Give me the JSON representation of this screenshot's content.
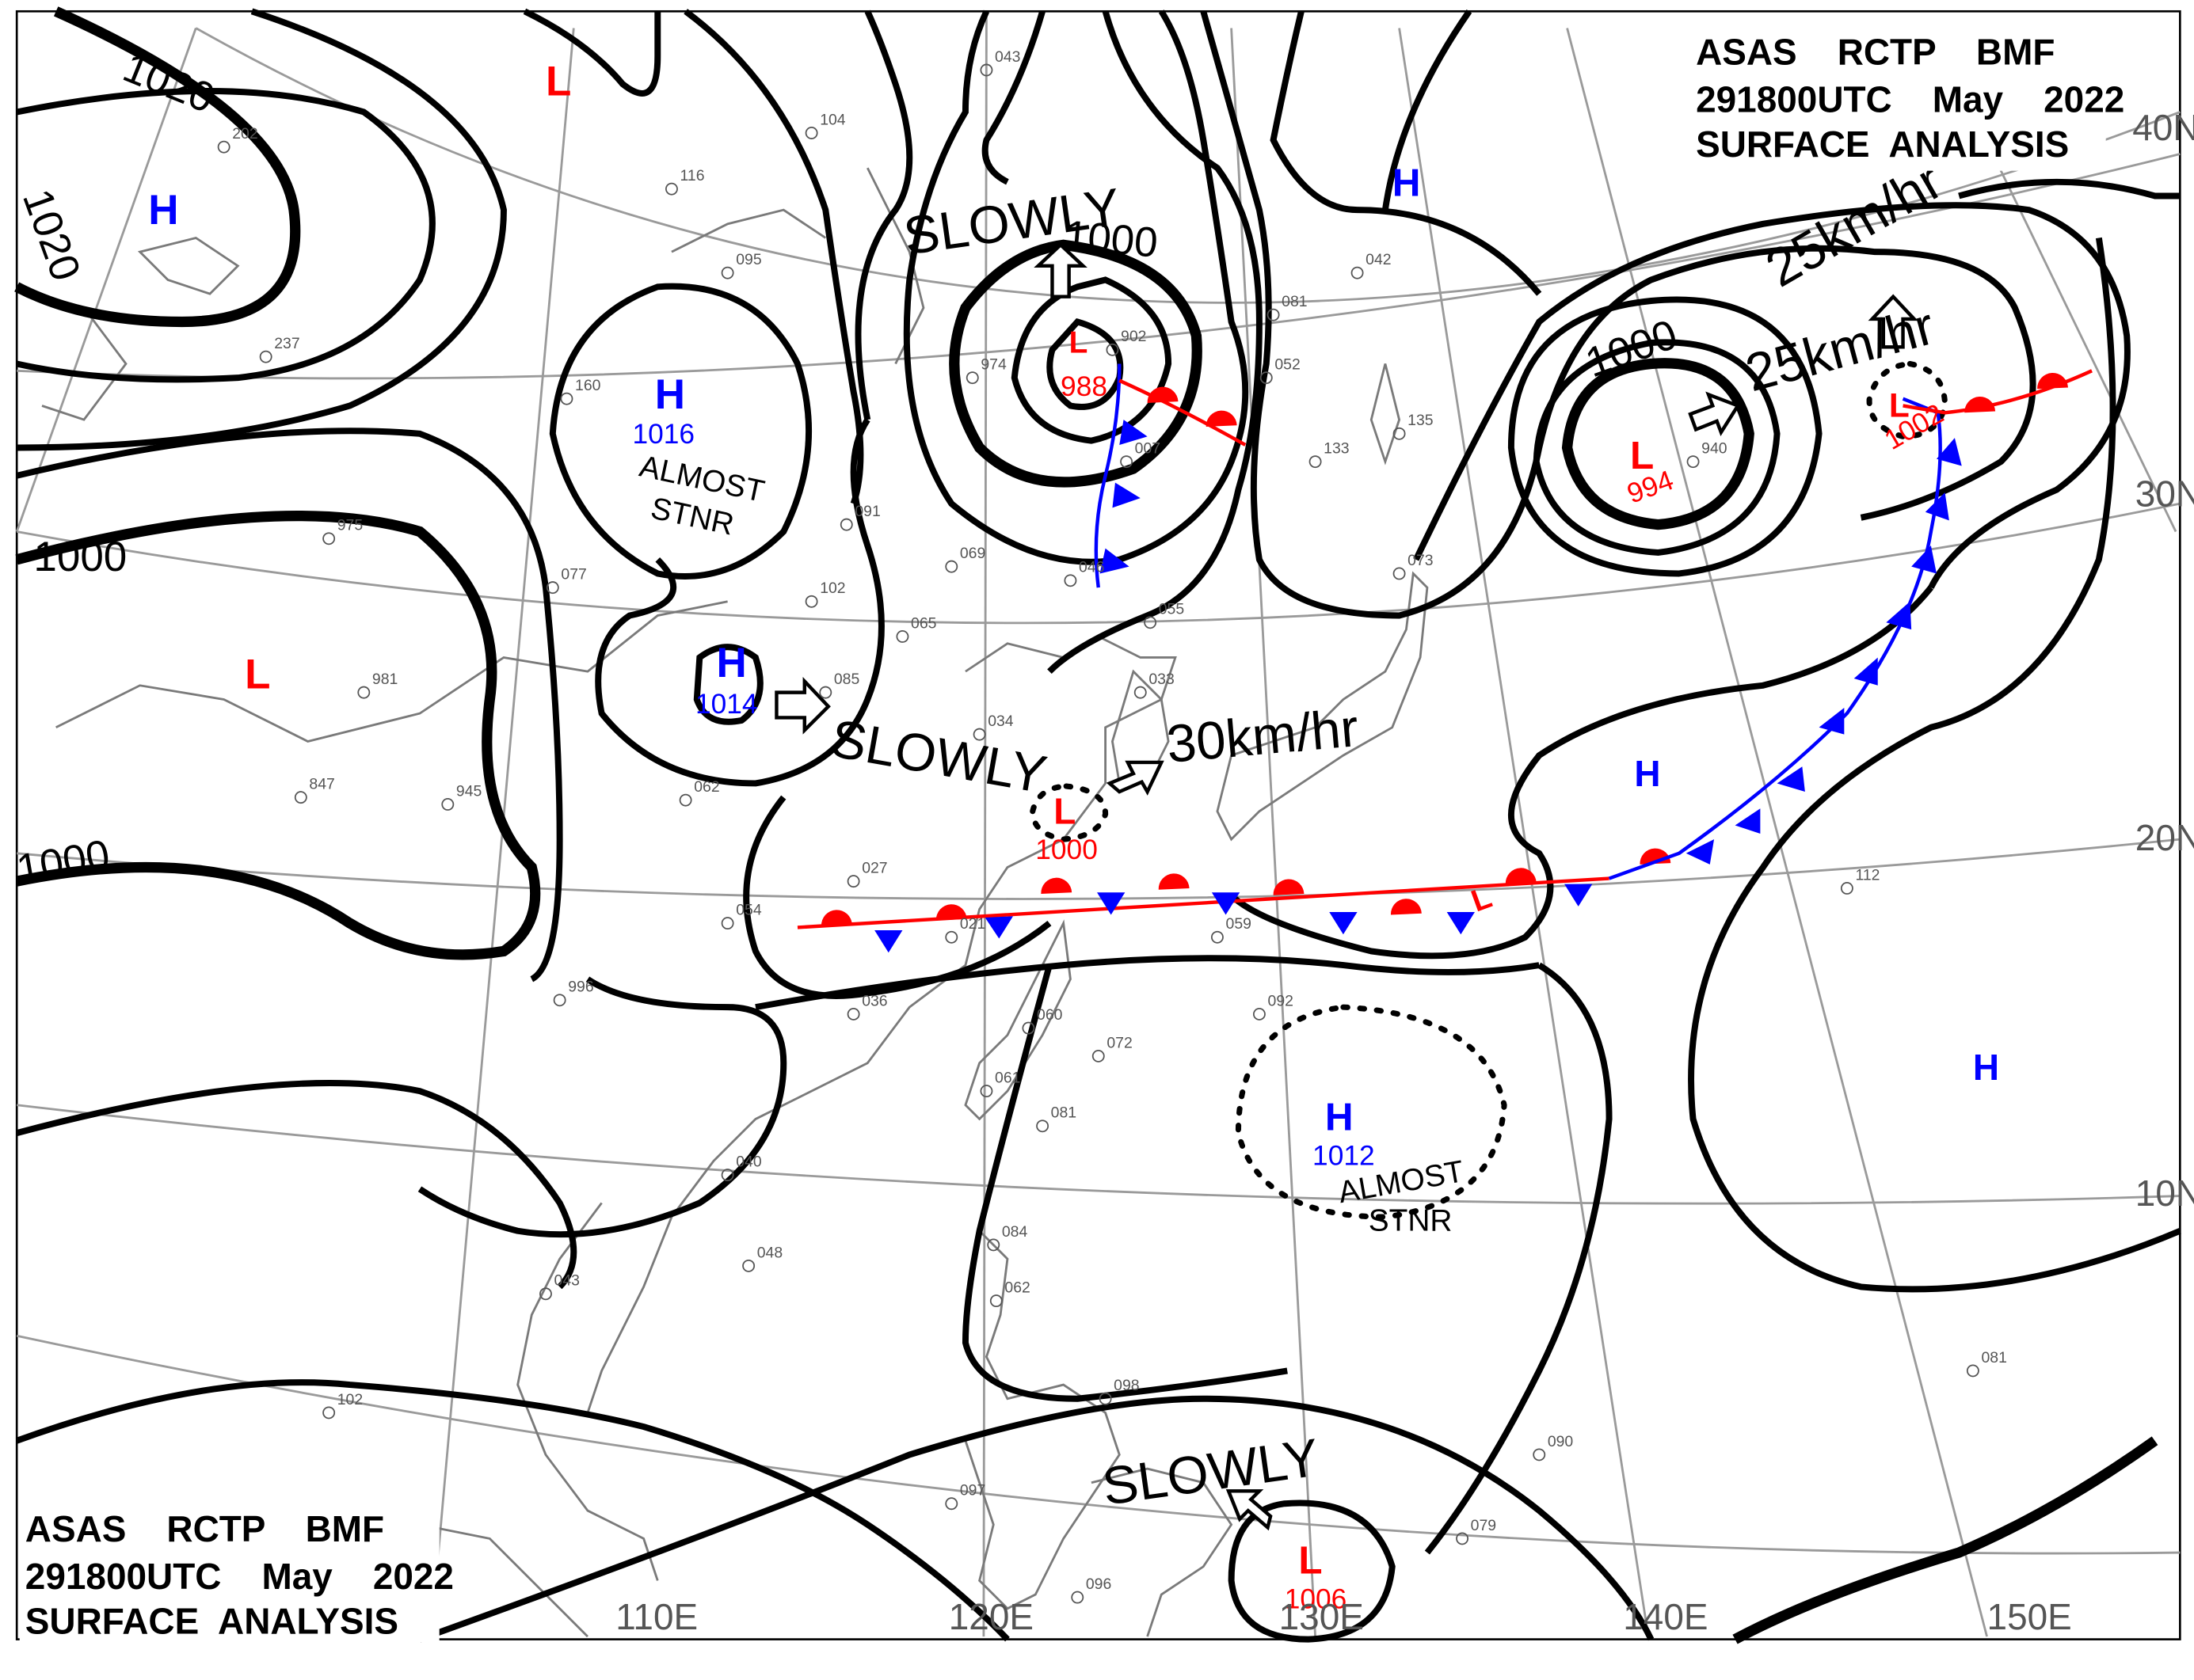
{
  "header": {
    "line1": "ASAS    RCTP    BMF",
    "line2": "291800UTC    May    2022",
    "line3": "SURFACE  ANALYSIS"
  },
  "isobar_labels": {
    "a1020": "1020",
    "b1020": "1020",
    "c1000": "1000",
    "d1000": "1000",
    "e1000": "1000",
    "f1000": "1000"
  },
  "pressure_centers": [
    {
      "type": "L",
      "value": ""
    },
    {
      "type": "H",
      "value": ""
    },
    {
      "type": "H",
      "value": "1016",
      "note": "ALMOST STNR"
    },
    {
      "type": "L",
      "value": "988"
    },
    {
      "type": "H",
      "value": ""
    },
    {
      "type": "L",
      "value": ""
    },
    {
      "type": "H",
      "value": "1014"
    },
    {
      "type": "L",
      "value": "1000"
    },
    {
      "type": "L",
      "value": "994"
    },
    {
      "type": "L",
      "value": "1002"
    },
    {
      "type": "H",
      "value": ""
    },
    {
      "type": "H",
      "value": ""
    },
    {
      "type": "H",
      "value": "1012",
      "note": "ALMOST STNR"
    },
    {
      "type": "L",
      "value": "1006"
    },
    {
      "type": "L",
      "value": ""
    }
  ],
  "motions": {
    "slowly_a": "SLOWLY",
    "slowly_b": "SLOWLY",
    "slowly_c": "SLOWLY",
    "speed_a": "30km/hr",
    "speed_b": "25km/hr",
    "speed_c": "25km/hr"
  },
  "coordinates": {
    "lat40": "40N",
    "lat30": "30N",
    "lat20": "20N",
    "lat10": "10N",
    "lon110": "110E",
    "lon120": "120E",
    "lon130": "130E",
    "lon140": "140E",
    "lon150": "150E"
  },
  "station_samples": [
    "202",
    "104",
    "043",
    "116",
    "095",
    "237",
    "160",
    "975",
    "077",
    "981",
    "847",
    "945",
    "062",
    "054",
    "996",
    "036",
    "091",
    "102",
    "065",
    "085",
    "034",
    "027",
    "021",
    "069",
    "046",
    "055",
    "033",
    "902",
    "974",
    "007",
    "081",
    "052",
    "133",
    "135",
    "073",
    "042",
    "940",
    "112",
    "092",
    "059",
    "060",
    "072",
    "061",
    "081",
    "040",
    "048",
    "043",
    "102",
    "084",
    "062",
    "098",
    "097",
    "096",
    "090",
    "079",
    "081"
  ],
  "colors": {
    "low": "#ff0000",
    "high": "#0000ff",
    "warm_front": "#ff0000",
    "cold_front": "#0000ff",
    "isobar": "#000000",
    "grid": "#9a9a9a"
  }
}
